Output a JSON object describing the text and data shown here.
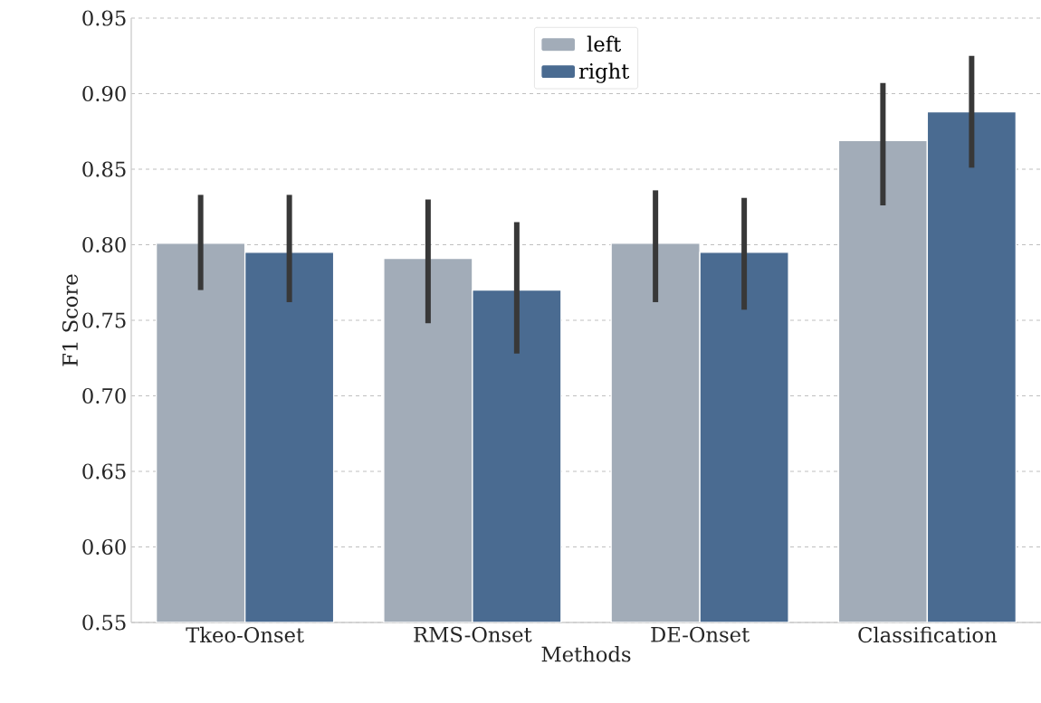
{
  "chart_data": {
    "type": "bar",
    "xlabel": "Methods",
    "ylabel": "F1 Score",
    "categories": [
      "Tkeo-Onset",
      "RMS-Onset",
      "DE-Onset",
      "Classification"
    ],
    "series": [
      {
        "name": "left",
        "color": "#a2acb8",
        "values": [
          0.801,
          0.791,
          0.801,
          0.869
        ],
        "errors": [
          [
            0.77,
            0.833
          ],
          [
            0.748,
            0.83
          ],
          [
            0.762,
            0.836
          ],
          [
            0.826,
            0.907
          ]
        ]
      },
      {
        "name": "right",
        "color": "#4a6b91",
        "values": [
          0.795,
          0.77,
          0.795,
          0.888
        ],
        "errors": [
          [
            0.762,
            0.833
          ],
          [
            0.728,
            0.815
          ],
          [
            0.757,
            0.831
          ],
          [
            0.851,
            0.925
          ]
        ]
      }
    ],
    "ylim": [
      0.55,
      0.95
    ],
    "yticks": [
      0.55,
      {
        "value": 0.6,
        "label": "0.60"
      },
      0.65,
      {
        "value": 0.7,
        "label": "0.70"
      },
      0.75,
      {
        "value": 0.8,
        "label": "0.80"
      },
      0.85,
      {
        "value": 0.9,
        "label": "0.90"
      },
      0.95
    ],
    "grid": "y",
    "legend": "top"
  }
}
